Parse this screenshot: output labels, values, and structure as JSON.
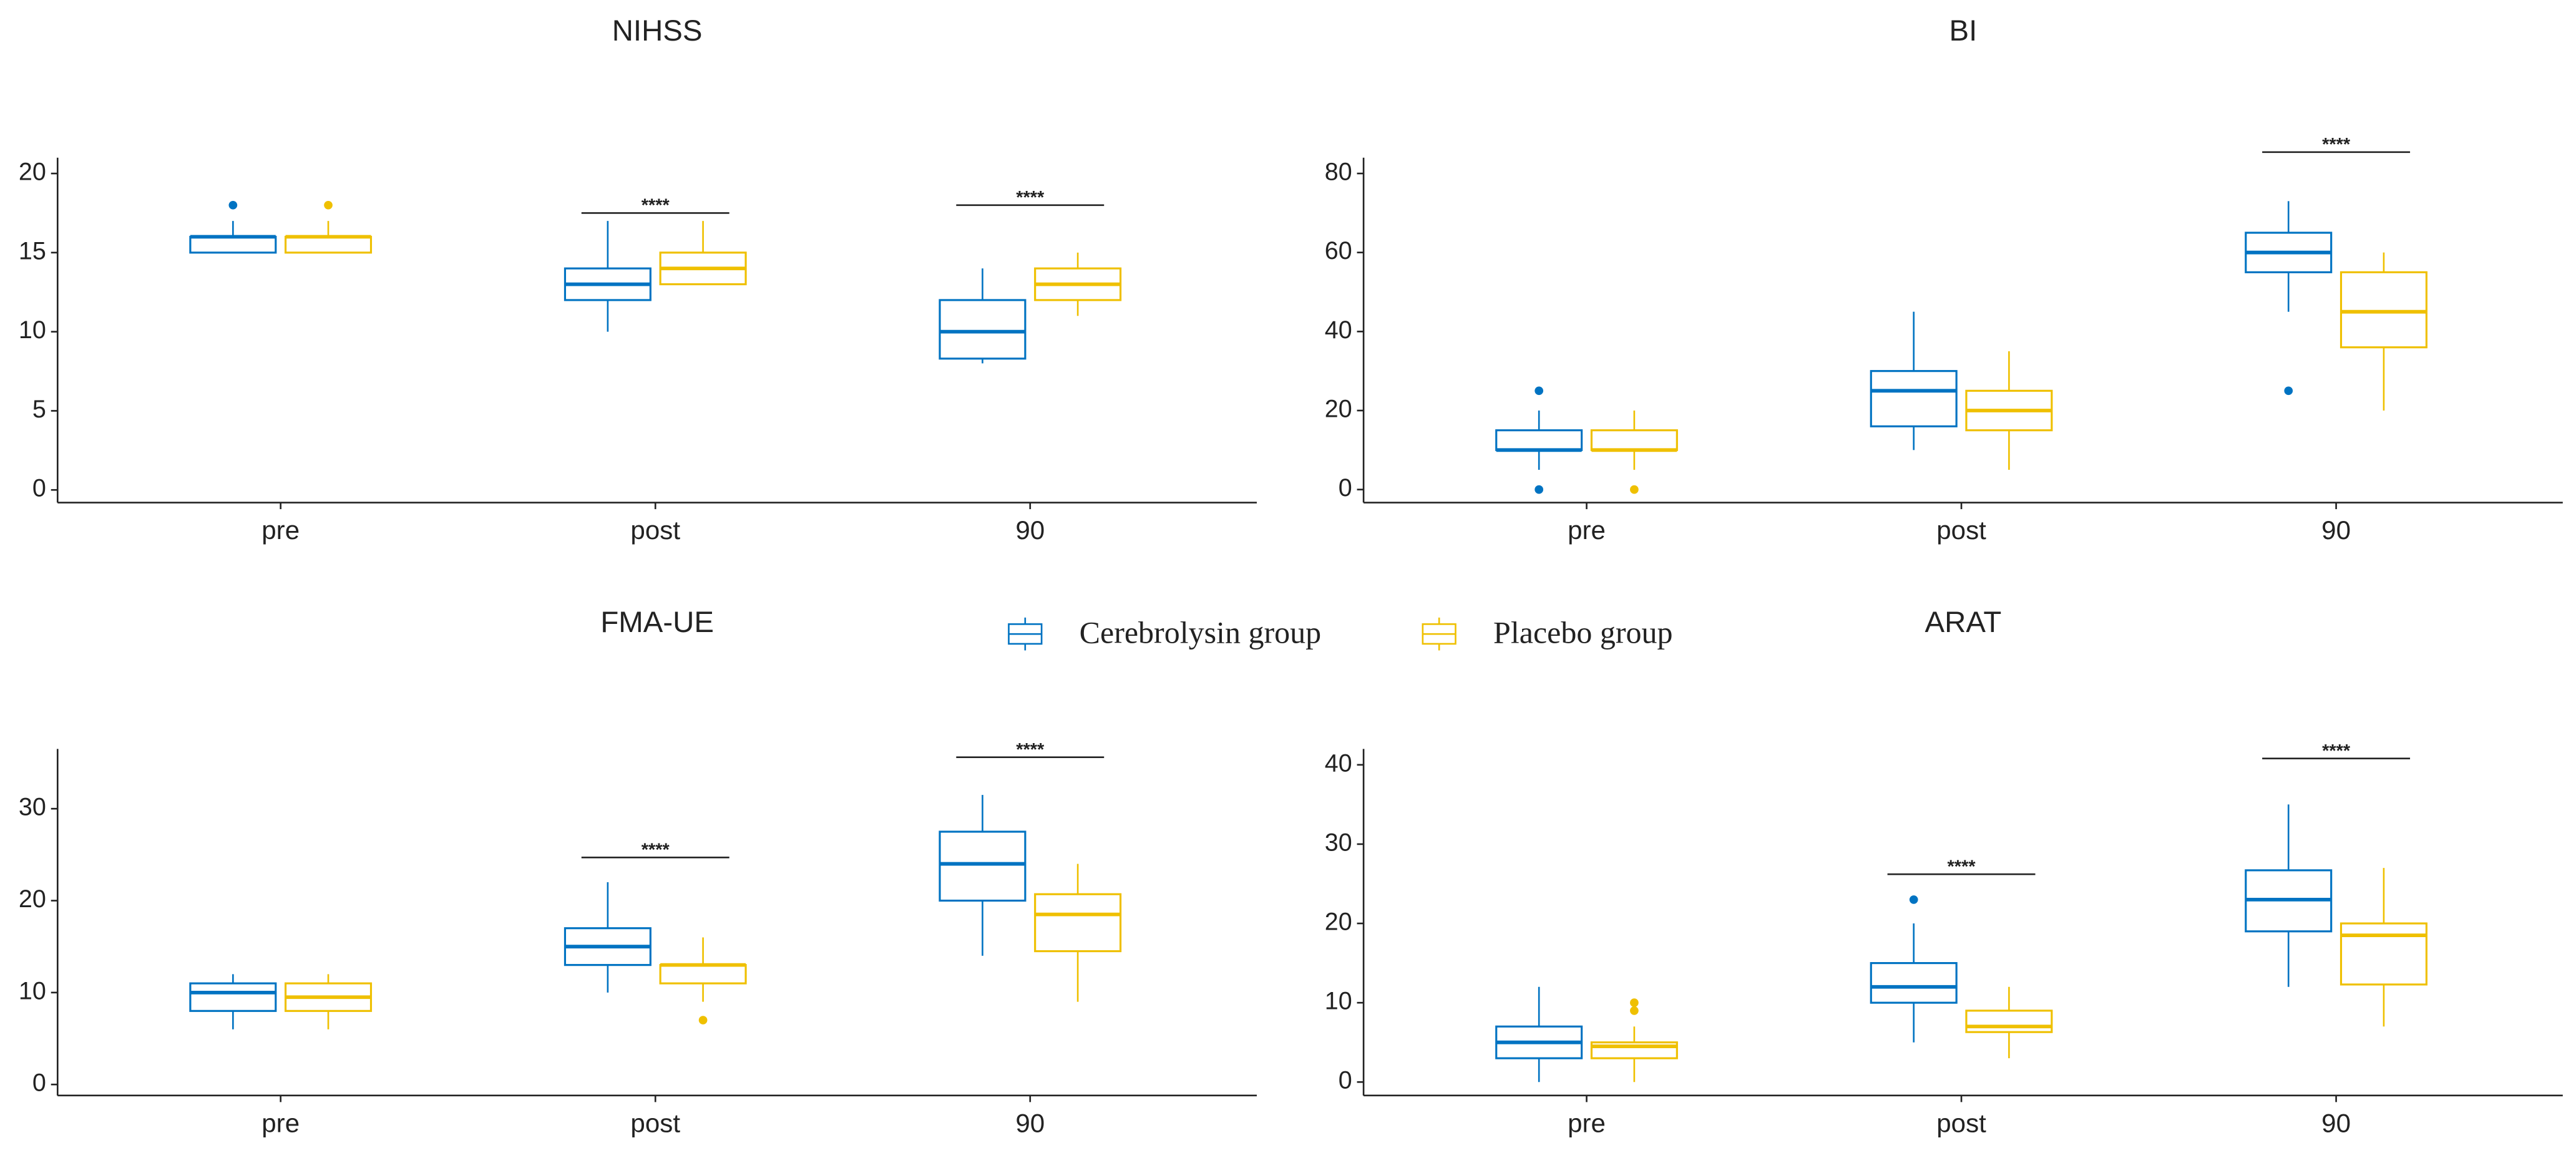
{
  "chart_data": [
    {
      "type": "box",
      "title": "NIHSS",
      "categories": [
        "pre",
        "post",
        "90"
      ],
      "ylim": [
        -0.8,
        21
      ],
      "yticks": [
        0,
        5,
        10,
        15,
        20
      ],
      "series": [
        {
          "name": "Cerebrolysin group",
          "color": "#0073C2",
          "values": [
            {
              "whislo": 15,
              "q1": 15,
              "med": 16,
              "q3": 16,
              "whishi": 17,
              "outliers": [
                18
              ]
            },
            {
              "whislo": 10,
              "q1": 12,
              "med": 13,
              "q3": 14,
              "whishi": 17,
              "outliers": []
            },
            {
              "whislo": 8,
              "q1": 8.3,
              "med": 10,
              "q3": 12,
              "whishi": 14,
              "outliers": []
            }
          ]
        },
        {
          "name": "Placebo group",
          "color": "#EFC000",
          "values": [
            {
              "whislo": 15,
              "q1": 15,
              "med": 16,
              "q3": 16,
              "whishi": 17,
              "outliers": [
                18
              ]
            },
            {
              "whislo": 13,
              "q1": 13,
              "med": 14,
              "q3": 15,
              "whishi": 17,
              "outliers": []
            },
            {
              "whislo": 11,
              "q1": 12,
              "med": 13,
              "q3": 14,
              "whishi": 15,
              "outliers": []
            }
          ]
        }
      ],
      "annotations": [
        {
          "text": "****",
          "x": "post",
          "y": 17.5
        },
        {
          "text": "****",
          "x": "90",
          "y": 18
        }
      ]
    },
    {
      "type": "box",
      "title": "BI",
      "categories": [
        "pre",
        "post",
        "90"
      ],
      "ylim": [
        -3.3,
        84
      ],
      "yticks": [
        0,
        20,
        40,
        60,
        80
      ],
      "series": [
        {
          "name": "Cerebrolysin group",
          "color": "#0073C2",
          "values": [
            {
              "whislo": 5,
              "q1": 10,
              "med": 10,
              "q3": 15,
              "whishi": 20,
              "outliers": [
                25,
                0
              ]
            },
            {
              "whislo": 10,
              "q1": 16,
              "med": 25,
              "q3": 30,
              "whishi": 45,
              "outliers": []
            },
            {
              "whislo": 45,
              "q1": 55,
              "med": 60,
              "q3": 65,
              "whishi": 73,
              "outliers": [
                25
              ]
            }
          ]
        },
        {
          "name": "Placebo group",
          "color": "#EFC000",
          "values": [
            {
              "whislo": 5,
              "q1": 10,
              "med": 10,
              "q3": 15,
              "whishi": 20,
              "outliers": [
                0
              ]
            },
            {
              "whislo": 5,
              "q1": 15,
              "med": 20,
              "q3": 25,
              "whishi": 35,
              "outliers": []
            },
            {
              "whislo": 20,
              "q1": 36,
              "med": 45,
              "q3": 55,
              "whishi": 60,
              "outliers": []
            }
          ]
        }
      ],
      "annotations": [
        {
          "text": "****",
          "x": "90",
          "y": 85.4
        }
      ]
    },
    {
      "type": "box",
      "title": "FMA-UE",
      "categories": [
        "pre",
        "post",
        "90"
      ],
      "ylim": [
        -1.2,
        36.5
      ],
      "yticks": [
        0,
        10,
        20,
        30
      ],
      "series": [
        {
          "name": "Cerebrolysin group",
          "color": "#0073C2",
          "values": [
            {
              "whislo": 6,
              "q1": 8,
              "med": 10,
              "q3": 11,
              "whishi": 12,
              "outliers": []
            },
            {
              "whislo": 10,
              "q1": 13,
              "med": 15,
              "q3": 17,
              "whishi": 22,
              "outliers": []
            },
            {
              "whislo": 14,
              "q1": 20,
              "med": 24,
              "q3": 27.5,
              "whishi": 31.5,
              "outliers": []
            }
          ]
        },
        {
          "name": "Placebo group",
          "color": "#EFC000",
          "values": [
            {
              "whislo": 6,
              "q1": 8,
              "med": 9.5,
              "q3": 11,
              "whishi": 12,
              "outliers": []
            },
            {
              "whislo": 9,
              "q1": 11,
              "med": 13,
              "q3": 13,
              "whishi": 16,
              "outliers": [
                7
              ]
            },
            {
              "whislo": 9,
              "q1": 14.5,
              "med": 18.5,
              "q3": 20.7,
              "whishi": 24,
              "outliers": []
            }
          ]
        }
      ],
      "annotations": [
        {
          "text": "****",
          "x": "post",
          "y": 24.7
        },
        {
          "text": "****",
          "x": "90",
          "y": 35.6
        }
      ]
    },
    {
      "type": "box",
      "title": "ARAT",
      "categories": [
        "pre",
        "post",
        "90"
      ],
      "ylim": [
        -1.7,
        42
      ],
      "yticks": [
        0,
        10,
        20,
        30,
        40
      ],
      "series": [
        {
          "name": "Cerebrolysin group",
          "color": "#0073C2",
          "values": [
            {
              "whislo": 0,
              "q1": 3,
              "med": 5,
              "q3": 7,
              "whishi": 12,
              "outliers": []
            },
            {
              "whislo": 5,
              "q1": 10,
              "med": 12,
              "q3": 15,
              "whishi": 20,
              "outliers": [
                23
              ]
            },
            {
              "whislo": 12,
              "q1": 19,
              "med": 23,
              "q3": 26.7,
              "whishi": 35,
              "outliers": []
            }
          ]
        },
        {
          "name": "Placebo group",
          "color": "#EFC000",
          "values": [
            {
              "whislo": 0,
              "q1": 3,
              "med": 4.5,
              "q3": 5,
              "whishi": 7,
              "outliers": [
                9,
                10
              ]
            },
            {
              "whislo": 3,
              "q1": 6.3,
              "med": 7,
              "q3": 9,
              "whishi": 12,
              "outliers": []
            },
            {
              "whislo": 7,
              "q1": 12.3,
              "med": 18.5,
              "q3": 20,
              "whishi": 27,
              "outliers": []
            }
          ]
        }
      ],
      "annotations": [
        {
          "text": "****",
          "x": "post",
          "y": 26.2
        },
        {
          "text": "****",
          "x": "90",
          "y": 40.8
        }
      ]
    }
  ]
}
